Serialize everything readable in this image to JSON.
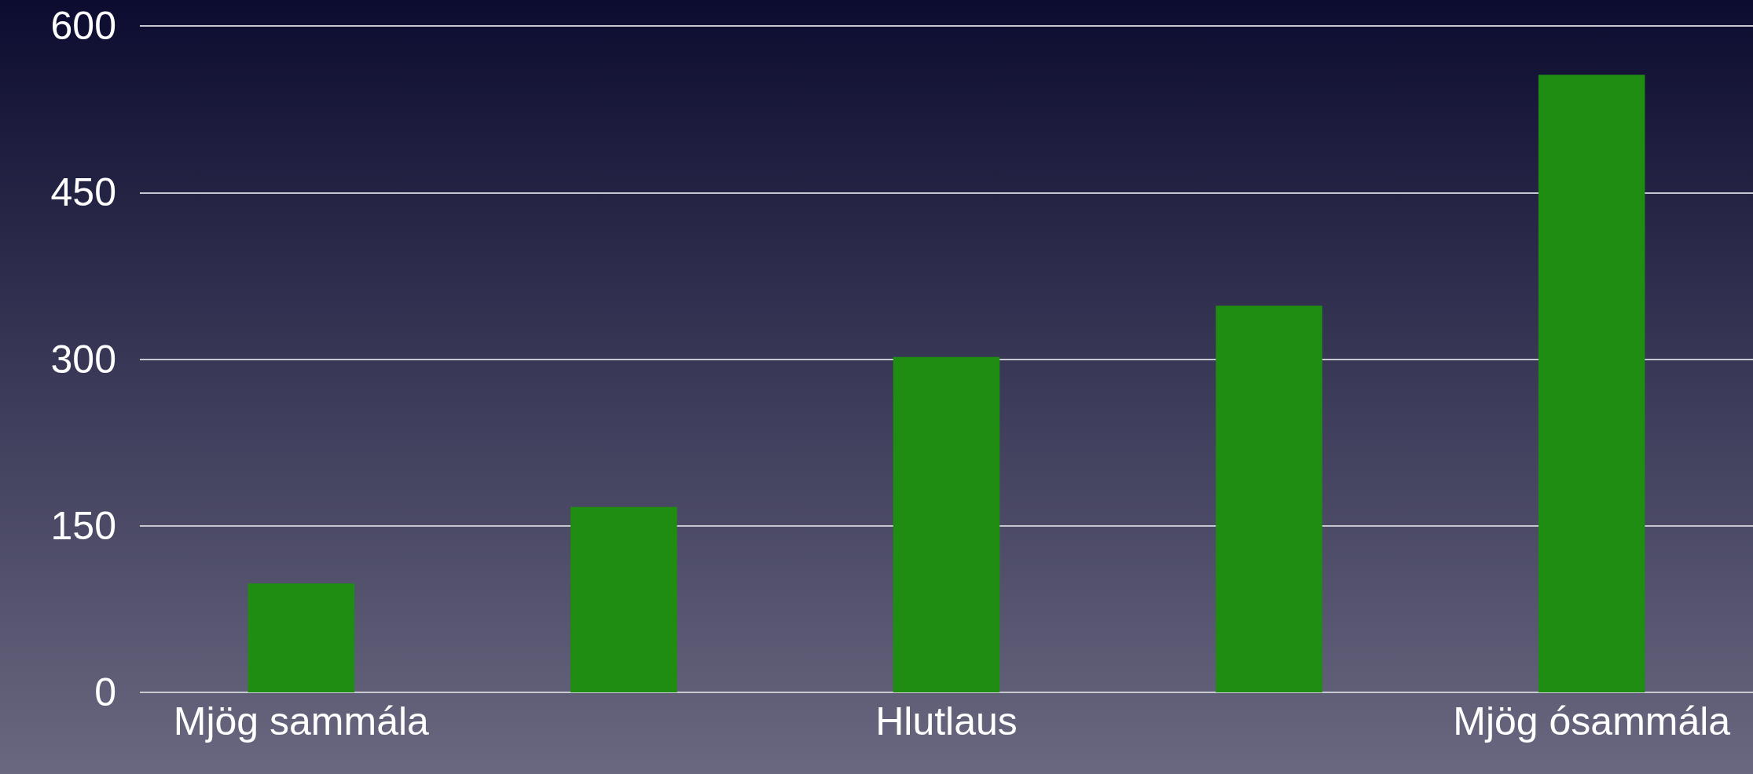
{
  "chart_data": {
    "type": "bar",
    "categories": [
      "Mjög sammála",
      null,
      "Hlutlaus",
      null,
      "Mjög ósammála"
    ],
    "values": [
      98,
      167,
      302,
      348,
      556
    ],
    "color": "#1f8c12",
    "ylim": [
      0,
      600
    ],
    "yticks": [
      0,
      150,
      300,
      450,
      600
    ],
    "grid": "y"
  }
}
